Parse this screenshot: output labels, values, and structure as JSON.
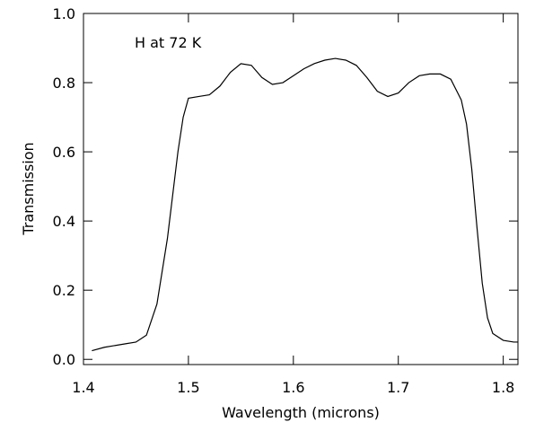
{
  "chart_data": {
    "type": "line",
    "xlabel": "Wavelength (microns)",
    "ylabel": "Transmission",
    "annotation": "H at 72 K",
    "x": [
      1.408,
      1.42,
      1.44,
      1.45,
      1.46,
      1.47,
      1.48,
      1.49,
      1.495,
      1.5,
      1.51,
      1.52,
      1.53,
      1.54,
      1.55,
      1.56,
      1.57,
      1.58,
      1.59,
      1.6,
      1.61,
      1.62,
      1.63,
      1.64,
      1.65,
      1.66,
      1.67,
      1.68,
      1.69,
      1.7,
      1.71,
      1.72,
      1.73,
      1.74,
      1.75,
      1.76,
      1.765,
      1.77,
      1.775,
      1.78,
      1.785,
      1.79,
      1.8,
      1.81,
      1.814
    ],
    "series": [
      {
        "color": "#000000",
        "values": [
          0.025,
          0.035,
          0.045,
          0.05,
          0.07,
          0.16,
          0.35,
          0.6,
          0.7,
          0.755,
          0.76,
          0.765,
          0.79,
          0.83,
          0.855,
          0.85,
          0.815,
          0.795,
          0.8,
          0.82,
          0.84,
          0.855,
          0.865,
          0.87,
          0.865,
          0.85,
          0.815,
          0.775,
          0.76,
          0.77,
          0.8,
          0.82,
          0.825,
          0.825,
          0.81,
          0.75,
          0.68,
          0.55,
          0.38,
          0.22,
          0.12,
          0.075,
          0.055,
          0.05,
          0.05
        ]
      }
    ],
    "xlim": [
      1.4,
      1.814
    ],
    "ylim": [
      -0.015,
      1.0
    ],
    "xticks": [
      1.4,
      1.5,
      1.6,
      1.7,
      1.8
    ],
    "yticks": [
      {
        "value": 0,
        "label": "0.0"
      },
      0.2,
      0.4,
      0.6,
      0.8,
      {
        "value": 1,
        "label": "1.0"
      }
    ]
  }
}
